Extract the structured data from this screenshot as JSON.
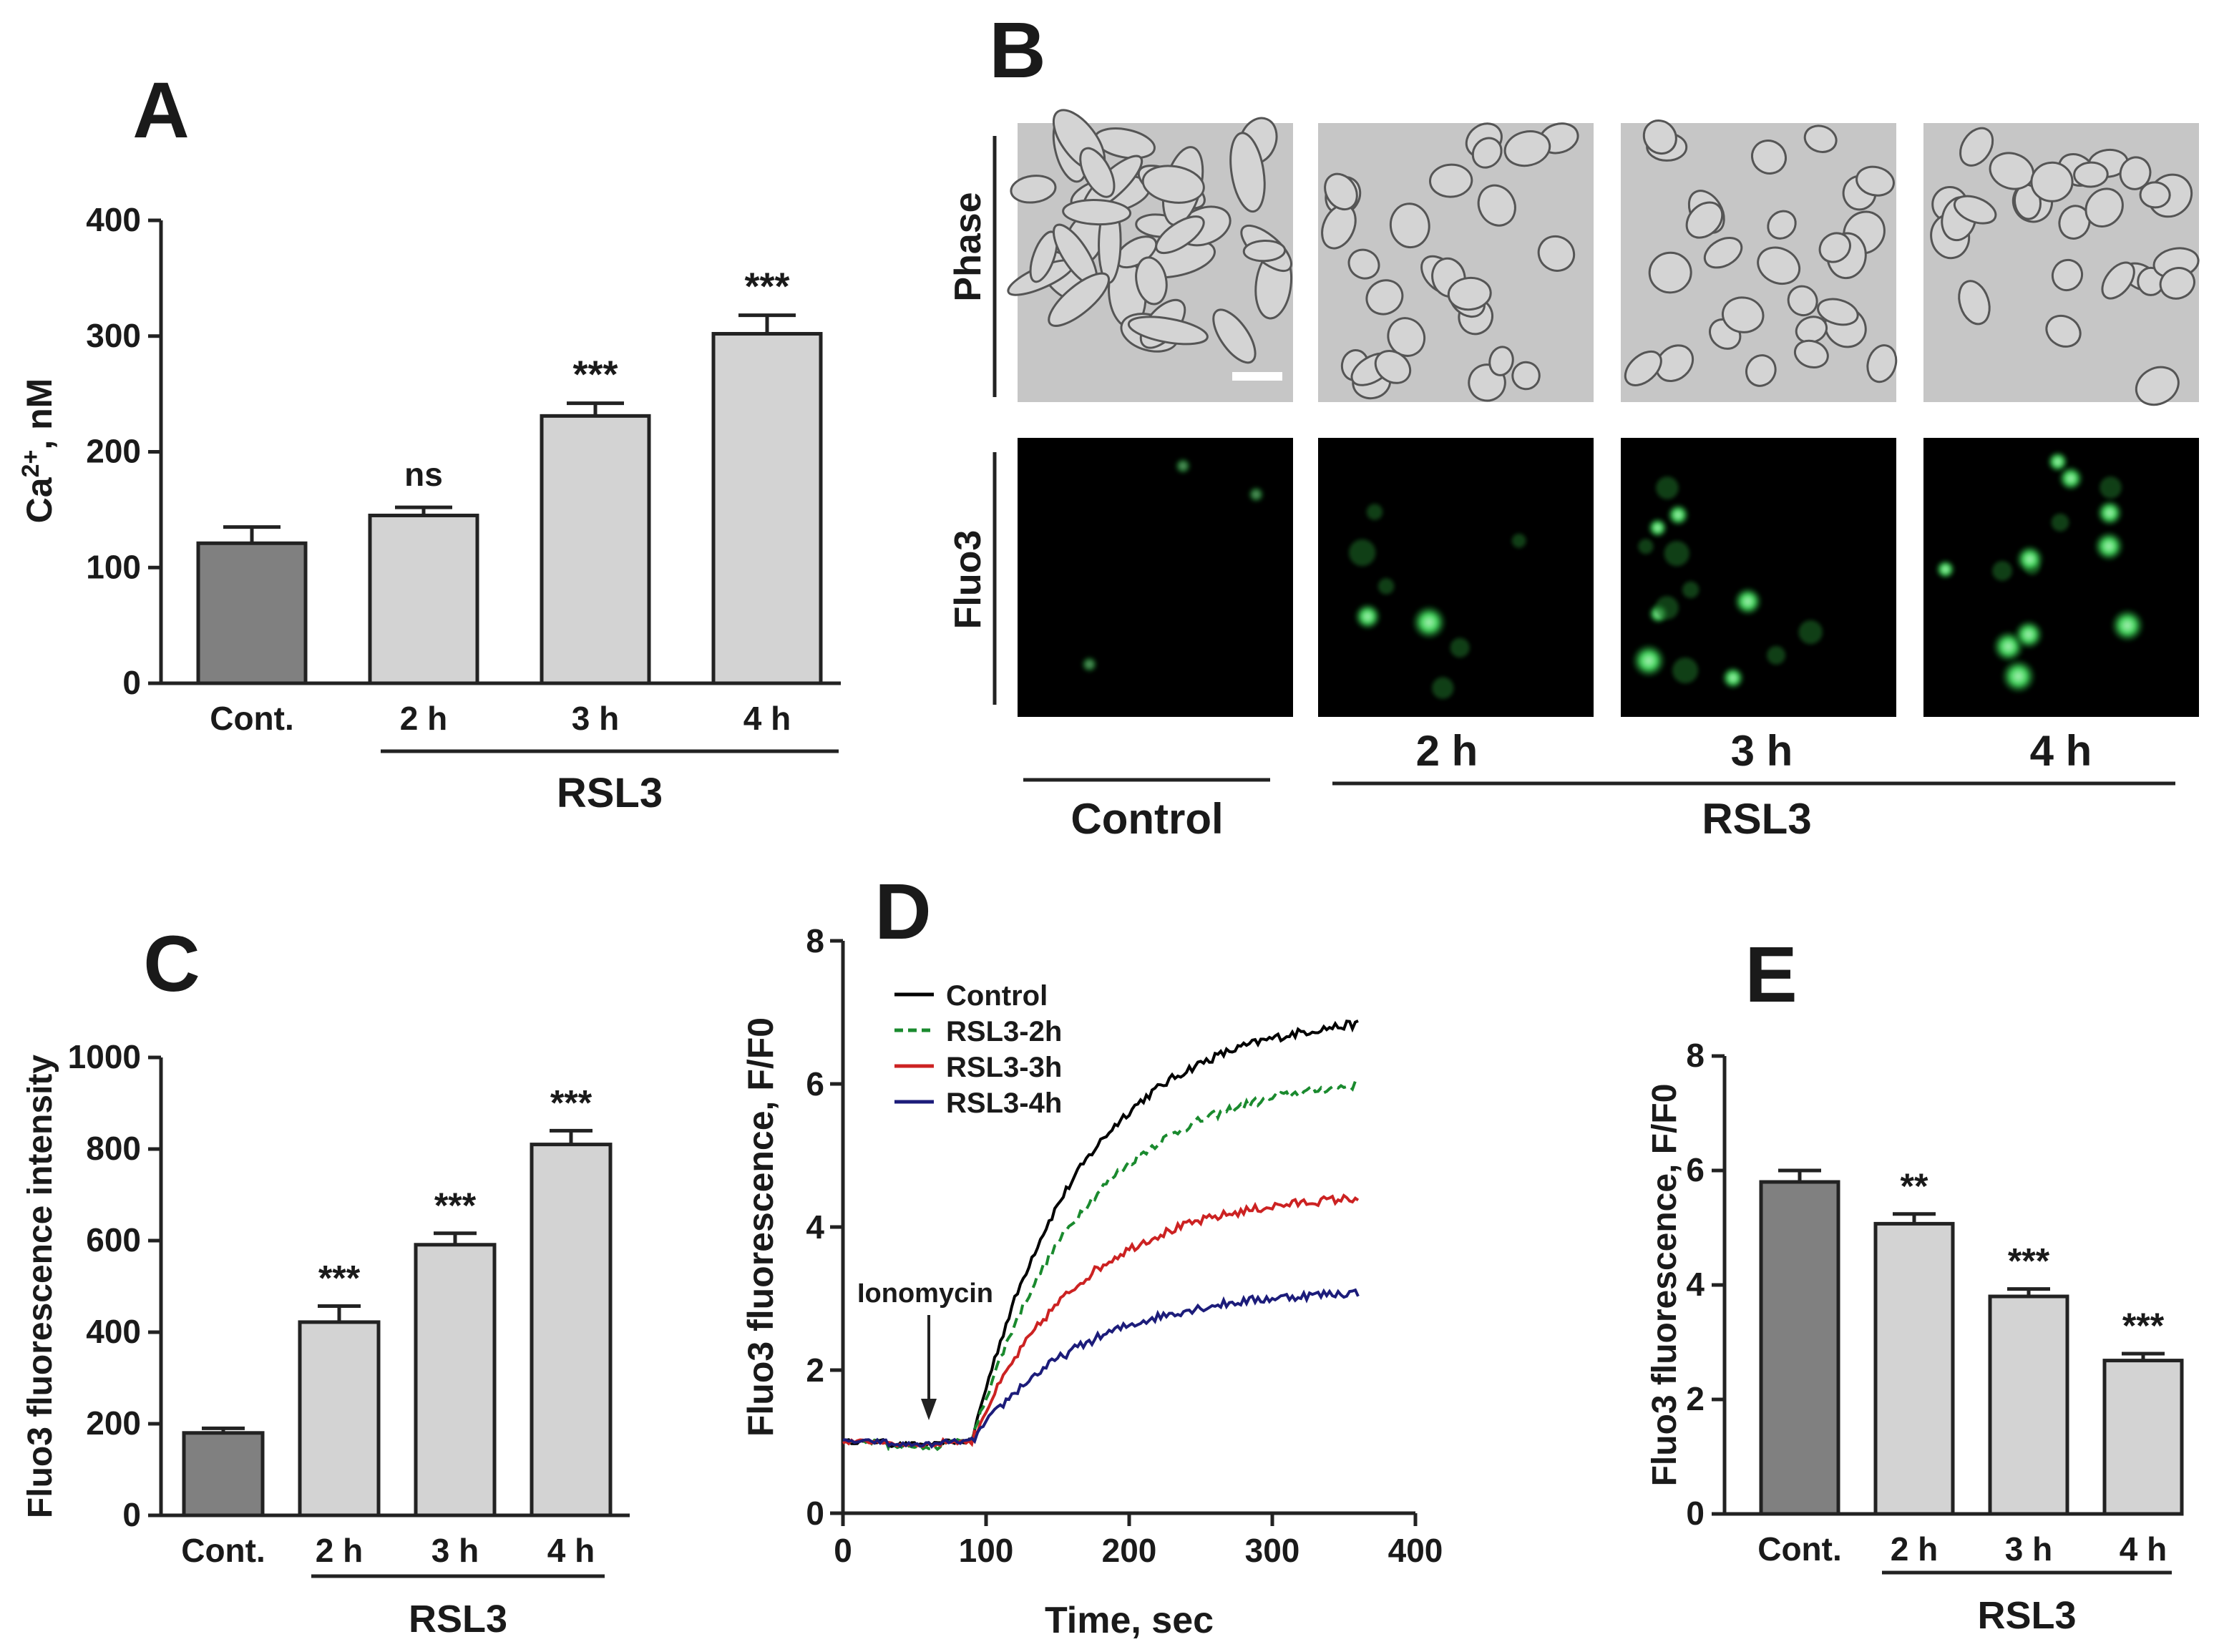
{
  "panels": {
    "A": {
      "letter": "A",
      "type": "bar",
      "ylabel": "Ca2+, nM",
      "ylabel_parts": {
        "base": "Ca",
        "sup": "2+",
        "rest": ", nM"
      },
      "ylim": [
        0,
        400
      ],
      "yticks": [
        0,
        100,
        200,
        300,
        400
      ],
      "categories": [
        "Cont.",
        "2 h",
        "3 h",
        "4 h"
      ],
      "values": [
        121,
        145,
        231,
        302
      ],
      "errors": [
        14,
        7,
        11,
        16
      ],
      "significance": [
        "",
        "ns",
        "***",
        "***"
      ],
      "group_label": "RSL3",
      "colors": [
        "#808080",
        "#d3d3d3",
        "#d3d3d3",
        "#d3d3d3"
      ]
    },
    "B": {
      "letter": "B",
      "row_labels": [
        "Phase",
        "Fluo3"
      ],
      "column_labels": [
        "",
        "2 h",
        "3 h",
        "4 h"
      ],
      "control_label": "Control",
      "group_label": "RSL3"
    },
    "C": {
      "letter": "C",
      "type": "bar",
      "ylabel": "Fluo3 fluorescence intensity",
      "ylim": [
        0,
        1000
      ],
      "yticks": [
        0,
        200,
        400,
        600,
        800,
        1000
      ],
      "categories": [
        "Cont.",
        "2 h",
        "3 h",
        "4 h"
      ],
      "values": [
        180,
        422,
        591,
        810
      ],
      "errors": [
        10,
        35,
        25,
        30
      ],
      "significance": [
        "",
        "***",
        "***",
        "***"
      ],
      "group_label": "RSL3",
      "colors": [
        "#808080",
        "#d3d3d3",
        "#d3d3d3",
        "#d3d3d3"
      ]
    },
    "D": {
      "letter": "D",
      "type": "line",
      "xlabel": "Time, sec",
      "ylabel": "Fluo3 fluorescence, F/F0",
      "xlim": [
        0,
        400
      ],
      "ylim": [
        0,
        8
      ],
      "xticks": [
        0,
        100,
        200,
        300,
        400
      ],
      "yticks": [
        0,
        2,
        4,
        6,
        8
      ],
      "annotation": "Ionomycin",
      "annotation_x": 60,
      "series": [
        {
          "name": "Control",
          "color": "#000000",
          "dash": "solid",
          "baseline": 1.0,
          "start": 90,
          "plateau": 7.0,
          "tau": 75
        },
        {
          "name": "RSL3-2h",
          "color": "#1a8a2e",
          "dash": "dashed",
          "baseline": 1.0,
          "start": 90,
          "plateau": 6.15,
          "tau": 78
        },
        {
          "name": "RSL3-3h",
          "color": "#cc2222",
          "dash": "solid",
          "baseline": 1.0,
          "start": 90,
          "plateau": 4.5,
          "tau": 75
        },
        {
          "name": "RSL3-4h",
          "color": "#1c1c7a",
          "dash": "solid",
          "baseline": 1.0,
          "start": 90,
          "plateau": 3.15,
          "tau": 78
        }
      ]
    },
    "E": {
      "letter": "E",
      "type": "bar",
      "ylabel": "Fluo3 fluorescence, F/F0",
      "ylim": [
        0,
        8
      ],
      "yticks": [
        0,
        2,
        4,
        6,
        8
      ],
      "categories": [
        "Cont.",
        "2 h",
        "3 h",
        "4 h"
      ],
      "values": [
        5.8,
        5.07,
        3.8,
        2.68
      ],
      "errors": [
        0.2,
        0.17,
        0.13,
        0.12
      ],
      "significance": [
        "",
        "**",
        "***",
        "***"
      ],
      "group_label": "RSL3",
      "colors": [
        "#808080",
        "#d3d3d3",
        "#d3d3d3",
        "#d3d3d3"
      ]
    }
  }
}
